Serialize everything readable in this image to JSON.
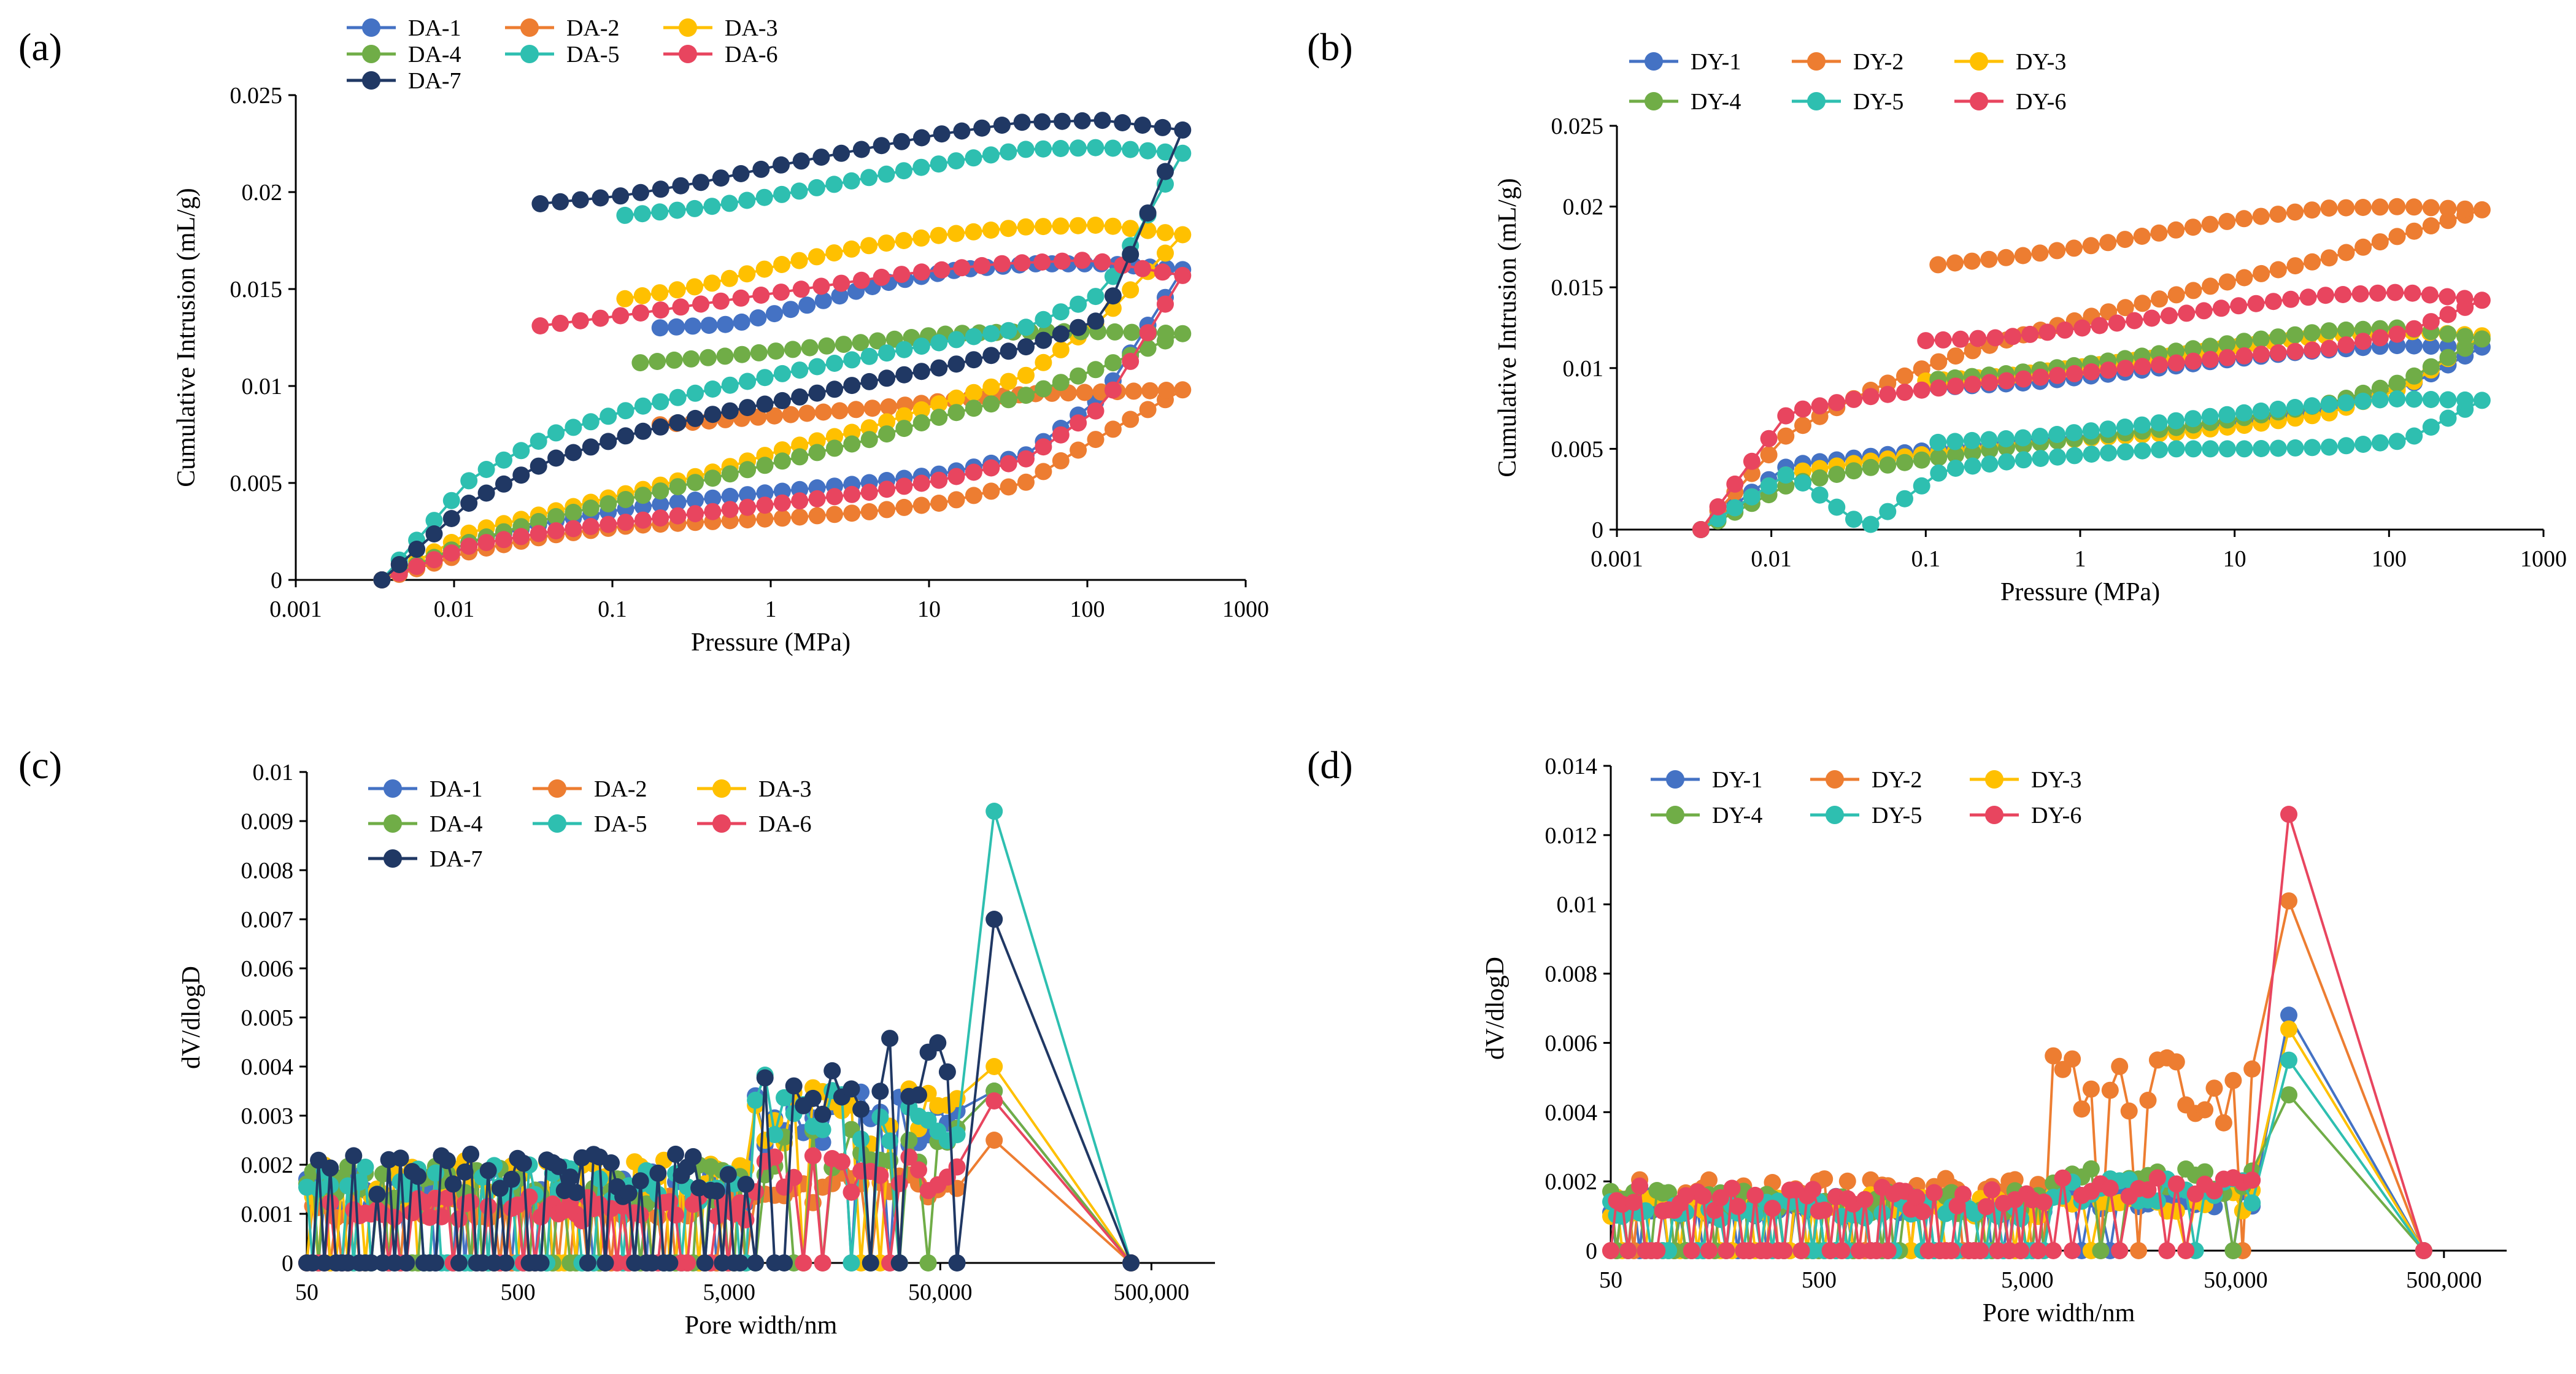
{
  "panels": [
    {
      "label": "(a)",
      "chart_data": {
        "type": "line",
        "xscale": "log",
        "xlabel": "Pressure (MPa)",
        "ylabel": "Cumulative Intrusion (mL/g)",
        "xlim": [
          0.001,
          1000
        ],
        "ylim": [
          0,
          0.025
        ],
        "xticks": [
          0.001,
          0.01,
          0.1,
          1,
          10,
          100,
          1000
        ],
        "xticklabels": [
          "0.001",
          "0.01",
          "0.1",
          "1",
          "10",
          "100",
          "1000"
        ],
        "yticks": [
          0,
          0.005,
          0.01,
          0.015,
          0.02,
          0.025
        ],
        "yticklabels": [
          "0",
          "0.005",
          "0.01",
          "0.015",
          "0.02",
          "0.025"
        ],
        "legend_position": "top",
        "series": [
          {
            "name": "DA-1",
            "color": "#4472c4",
            "intrusion": [
              0,
              0.002,
              0.003,
              0.0037,
              0.0042,
              0.0046,
              0.005,
              0.0055,
              0.0064,
              0.0095,
              0.016
            ],
            "extrusion": [
              0.016,
              0.0163,
              0.0163,
              0.016,
              0.0153,
              0.0142,
              0.0132,
              0.013
            ]
          },
          {
            "name": "DA-2",
            "color": "#ed7d31",
            "intrusion": [
              0,
              0.0015,
              0.0023,
              0.0028,
              0.003,
              0.0032,
              0.0035,
              0.004,
              0.005,
              0.0075,
              0.0098
            ],
            "extrusion": [
              0.0098,
              0.0097,
              0.0096,
              0.0093,
              0.0089,
              0.0086,
              0.0083,
              0.008
            ]
          },
          {
            "name": "DA-3",
            "color": "#ffc000",
            "intrusion": [
              0,
              0.0025,
              0.0035,
              0.0045,
              0.0055,
              0.0068,
              0.0078,
              0.0092,
              0.0105,
              0.0135,
              0.0178
            ],
            "extrusion": [
              0.0178,
              0.0183,
              0.0182,
              0.0178,
              0.0172,
              0.0163,
              0.0152,
              0.0145
            ]
          },
          {
            "name": "DA-4",
            "color": "#70ad47",
            "intrusion": [
              0,
              0.002,
              0.0032,
              0.0042,
              0.0052,
              0.0062,
              0.0072,
              0.0085,
              0.0095,
              0.011,
              0.0127
            ],
            "extrusion": [
              0.0127,
              0.0128,
              0.0128,
              0.0127,
              0.0123,
              0.0119,
              0.0115,
              0.0112
            ]
          },
          {
            "name": "DA-5",
            "color": "#2ebfb0",
            "intrusion": [
              0,
              0.0053,
              0.0075,
              0.0088,
              0.0098,
              0.0107,
              0.0115,
              0.0123,
              0.013,
              0.0148,
              0.022
            ],
            "extrusion": [
              0.022,
              0.0223,
              0.0222,
              0.0215,
              0.0207,
              0.0199,
              0.0192,
              0.0188
            ]
          },
          {
            "name": "DA-6",
            "color": "#e8455f",
            "intrusion": [
              0,
              0.0018,
              0.0025,
              0.003,
              0.0035,
              0.004,
              0.0045,
              0.0052,
              0.0062,
              0.009,
              0.0157
            ],
            "extrusion": [
              0.0157,
              0.0165,
              0.0163,
              0.0158,
              0.0151,
              0.0144,
              0.0137,
              0.0131
            ]
          },
          {
            "name": "DA-7",
            "color": "#203864",
            "intrusion": [
              0,
              0.0041,
              0.0062,
              0.0075,
              0.0085,
              0.0093,
              0.0102,
              0.011,
              0.012,
              0.0135,
              0.0232
            ],
            "extrusion": [
              0.0232,
              0.0237,
              0.0236,
              0.023,
              0.0222,
              0.0214,
              0.0205,
              0.0198,
              0.0194
            ]
          }
        ]
      }
    },
    {
      "label": "(b)",
      "chart_data": {
        "type": "line",
        "xscale": "log",
        "xlabel": "Pressure (MPa)",
        "ylabel": "Cumulative Intrusion (mL/g)",
        "xlim": [
          0.001,
          1000
        ],
        "ylim": [
          0,
          0.025
        ],
        "xticks": [
          0.001,
          0.01,
          0.1,
          1,
          10,
          100,
          1000
        ],
        "xticklabels": [
          "0.001",
          "0.01",
          "0.1",
          "1",
          "10",
          "100",
          "1000"
        ],
        "yticks": [
          0,
          0.005,
          0.01,
          0.015,
          0.02,
          0.025
        ],
        "yticklabels": [
          "0",
          "0.005",
          "0.01",
          "0.015",
          "0.02",
          "0.025"
        ],
        "legend_position": "top",
        "series": [
          {
            "name": "DY-1",
            "color": "#4472c4",
            "intrusion": [
              0,
              0.004,
              0.0045,
              0.005,
              0.0055,
              0.0058,
              0.0062,
              0.0067,
              0.0075,
              0.0088,
              0.0113
            ],
            "extrusion": [
              0.0113,
              0.0114,
              0.011,
              0.0104,
              0.0097,
              0.0091,
              0.0088
            ]
          },
          {
            "name": "DY-2",
            "color": "#ed7d31",
            "intrusion": [
              0,
              0.006,
              0.0085,
              0.0105,
              0.012,
              0.0133,
              0.0145,
              0.0157,
              0.0168,
              0.0183,
              0.0198
            ],
            "extrusion": [
              0.0198,
              0.02,
              0.0199,
              0.0193,
              0.0185,
              0.0176,
              0.0169,
              0.0164
            ]
          },
          {
            "name": "DY-3",
            "color": "#ffc000",
            "intrusion": [
              0,
              0.0035,
              0.0042,
              0.0048,
              0.0053,
              0.0057,
              0.006,
              0.0065,
              0.0072,
              0.0088,
              0.012
            ],
            "extrusion": [
              0.012,
              0.0123,
              0.012,
              0.0114,
              0.0107,
              0.0101,
              0.0095,
              0.0092
            ]
          },
          {
            "name": "DY-4",
            "color": "#70ad47",
            "intrusion": [
              0,
              0.0028,
              0.0038,
              0.0045,
              0.0052,
              0.0058,
              0.0063,
              0.007,
              0.0078,
              0.0092,
              0.0118
            ],
            "extrusion": [
              0.0118,
              0.0125,
              0.0123,
              0.0117,
              0.011,
              0.0103,
              0.0097,
              0.0093
            ]
          },
          {
            "name": "DY-5",
            "color": "#2ebfb0",
            "intrusion": [
              0,
              0.0035,
              0.0001,
              0.0037,
              0.0043,
              0.0047,
              0.005,
              0.005,
              0.0051,
              0.0055,
              0.008
            ],
            "extrusion": [
              0.008,
              0.0081,
              0.0076,
              0.007,
              0.0063,
              0.0057,
              0.0054
            ]
          },
          {
            "name": "DY-6",
            "color": "#e8455f",
            "intrusion": [
              0,
              0.0073,
              0.0082,
              0.0088,
              0.0093,
              0.0098,
              0.0103,
              0.0108,
              0.0112,
              0.0122,
              0.0142
            ],
            "extrusion": [
              0.0142,
              0.0147,
              0.0145,
              0.0139,
              0.0132,
              0.0125,
              0.0119,
              0.0117
            ]
          }
        ]
      }
    },
    {
      "label": "(c)",
      "chart_data": {
        "type": "line",
        "xscale": "log",
        "xlabel": "Pore width/nm",
        "ylabel": "dV/dlogD",
        "xlim": [
          50,
          1000000
        ],
        "ylim": [
          0,
          0.01
        ],
        "xticks": [
          50,
          500,
          5000,
          50000,
          500000
        ],
        "xticklabels": [
          "50",
          "500",
          "5,000",
          "50,000",
          "500,000"
        ],
        "yticks": [
          0,
          0.001,
          0.002,
          0.003,
          0.004,
          0.005,
          0.006,
          0.007,
          0.008,
          0.009,
          0.01
        ],
        "yticklabels": [
          "0",
          "0.001",
          "0.002",
          "0.003",
          "0.004",
          "0.005",
          "0.006",
          "0.007",
          "0.008",
          "0.009",
          "0.01"
        ],
        "legend_position": "top-left",
        "peak_x": 90000,
        "series": [
          {
            "name": "DA-1",
            "color": "#4472c4",
            "level": 0.0015,
            "step": 0.0028,
            "peak": 0.0035
          },
          {
            "name": "DA-2",
            "color": "#ed7d31",
            "level": 0.0012,
            "step": 0.0015,
            "peak": 0.0025
          },
          {
            "name": "DA-3",
            "color": "#ffc000",
            "level": 0.0017,
            "step": 0.0029,
            "peak": 0.004
          },
          {
            "name": "DA-4",
            "color": "#70ad47",
            "level": 0.0016,
            "step": 0.0022,
            "peak": 0.0035
          },
          {
            "name": "DA-5",
            "color": "#2ebfb0",
            "level": 0.0016,
            "step": 0.0031,
            "peak": 0.0092
          },
          {
            "name": "DA-6",
            "color": "#e8455f",
            "level": 0.0011,
            "step": 0.0018,
            "peak": 0.0033
          },
          {
            "name": "DA-7",
            "color": "#203864",
            "level": 0.0018,
            "step": 0.0037,
            "peak": 0.007
          }
        ]
      }
    },
    {
      "label": "(d)",
      "chart_data": {
        "type": "line",
        "xscale": "log",
        "xlabel": "Pore width/nm",
        "ylabel": "dV/dlogD",
        "xlim": [
          50,
          1000000
        ],
        "ylim": [
          0,
          0.014
        ],
        "xticks": [
          50,
          500,
          5000,
          50000,
          500000
        ],
        "xticklabels": [
          "50",
          "500",
          "5,000",
          "50,000",
          "500,000"
        ],
        "yticks": [
          0,
          0.002,
          0.004,
          0.006,
          0.008,
          0.01,
          0.012,
          0.014
        ],
        "yticklabels": [
          "0",
          "0.002",
          "0.004",
          "0.006",
          "0.008",
          "0.01",
          "0.012",
          "0.014"
        ],
        "legend_position": "top-left",
        "peak_x": 90000,
        "series": [
          {
            "name": "DY-1",
            "color": "#4472c4",
            "level": 0.0013,
            "step": 0.0015,
            "peak": 0.0068
          },
          {
            "name": "DY-2",
            "color": "#ed7d31",
            "level": 0.0017,
            "step": 0.0045,
            "peak": 0.0101
          },
          {
            "name": "DY-3",
            "color": "#ffc000",
            "level": 0.0013,
            "step": 0.0014,
            "peak": 0.0064
          },
          {
            "name": "DY-4",
            "color": "#70ad47",
            "level": 0.0014,
            "step": 0.0019,
            "peak": 0.0045
          },
          {
            "name": "DY-5",
            "color": "#2ebfb0",
            "level": 0.0012,
            "step": 0.0017,
            "peak": 0.0055
          },
          {
            "name": "DY-6",
            "color": "#e8455f",
            "level": 0.0015,
            "step": 0.0018,
            "peak": 0.0126
          }
        ]
      }
    }
  ]
}
